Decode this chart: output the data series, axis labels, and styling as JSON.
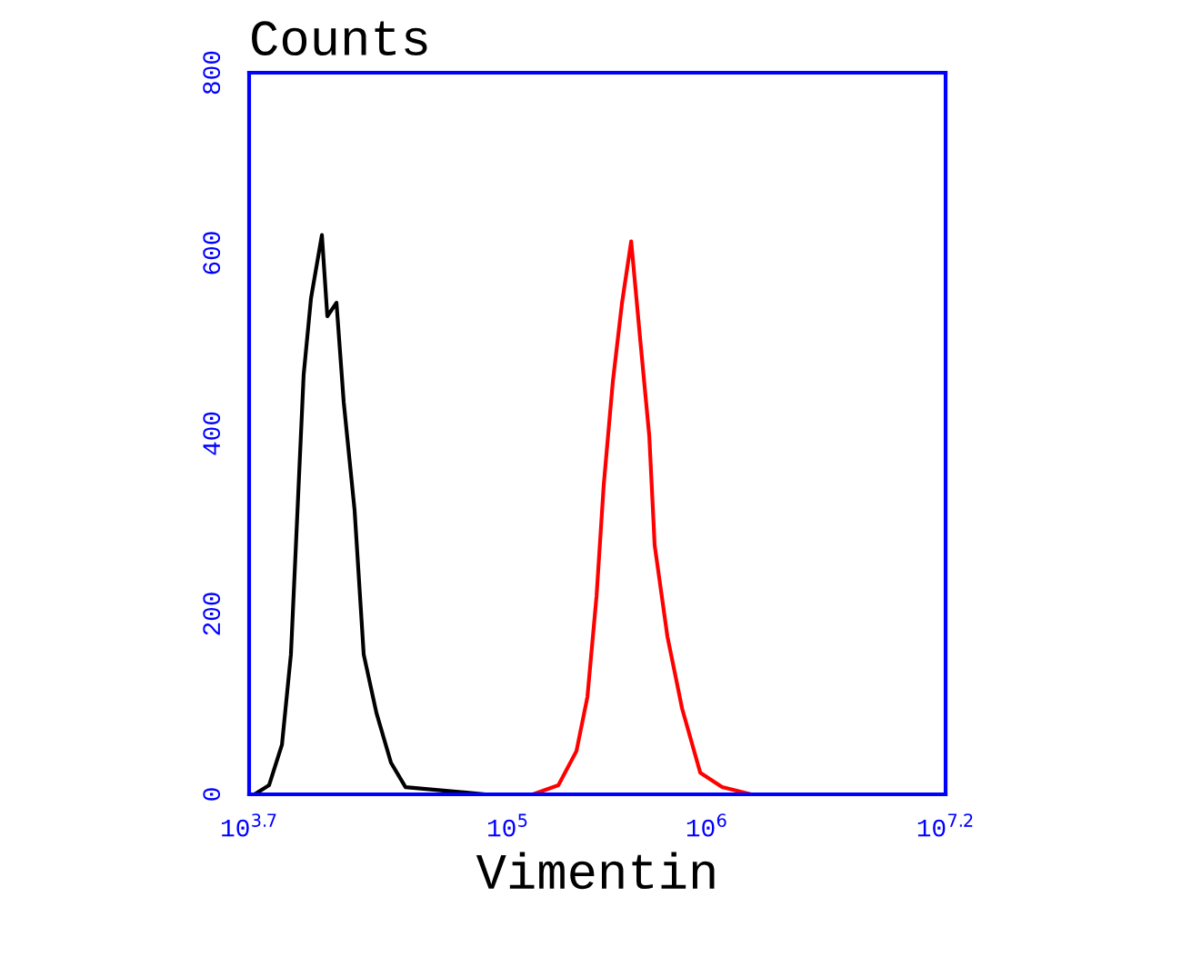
{
  "chart_data": {
    "type": "line",
    "ylabel": "Counts",
    "xlabel": "Vimentin",
    "log": "x",
    "grid": false,
    "legend": false,
    "marker": "none",
    "line_style": "solid",
    "xlim": [
      5012,
      15849000
    ],
    "ylim": [
      0,
      800
    ],
    "xticks": [
      {
        "value": 5012,
        "label": "10$^{3.7}$"
      },
      {
        "value": 100000,
        "label": "10$^{5}$"
      },
      {
        "value": 1000000,
        "label": "10$^{6}$"
      },
      {
        "value": 15849000,
        "label": "10$^{7.2}$"
      }
    ],
    "yticks": [
      0,
      200,
      400,
      600,
      800
    ],
    "series": [
      {
        "color": "#000000",
        "x": [
          5333,
          6310,
          7328,
          8128,
          8670,
          9419,
          10257,
          11633,
          12388,
          13772,
          14972,
          16982,
          18874,
          21878,
          25882,
          30620,
          77268,
          1000000
        ],
        "values": [
          0,
          10,
          55,
          155,
          290,
          465,
          550,
          620,
          530,
          545,
          435,
          315,
          155,
          90,
          35,
          8,
          0,
          0
        ]
      },
      {
        "color": "#ff0000",
        "x": [
          6310,
          133660,
          179473,
          221309,
          251189,
          279254,
          303389,
          337287,
          374973,
          416869,
          462381,
          514044,
          547016,
          633870,
          751623,
          926830,
          1193988,
          1671091
        ],
        "values": [
          0,
          0,
          10,
          48,
          108,
          220,
          343,
          458,
          545,
          613,
          505,
          397,
          276,
          175,
          95,
          24,
          8,
          0
        ]
      }
    ]
  }
}
